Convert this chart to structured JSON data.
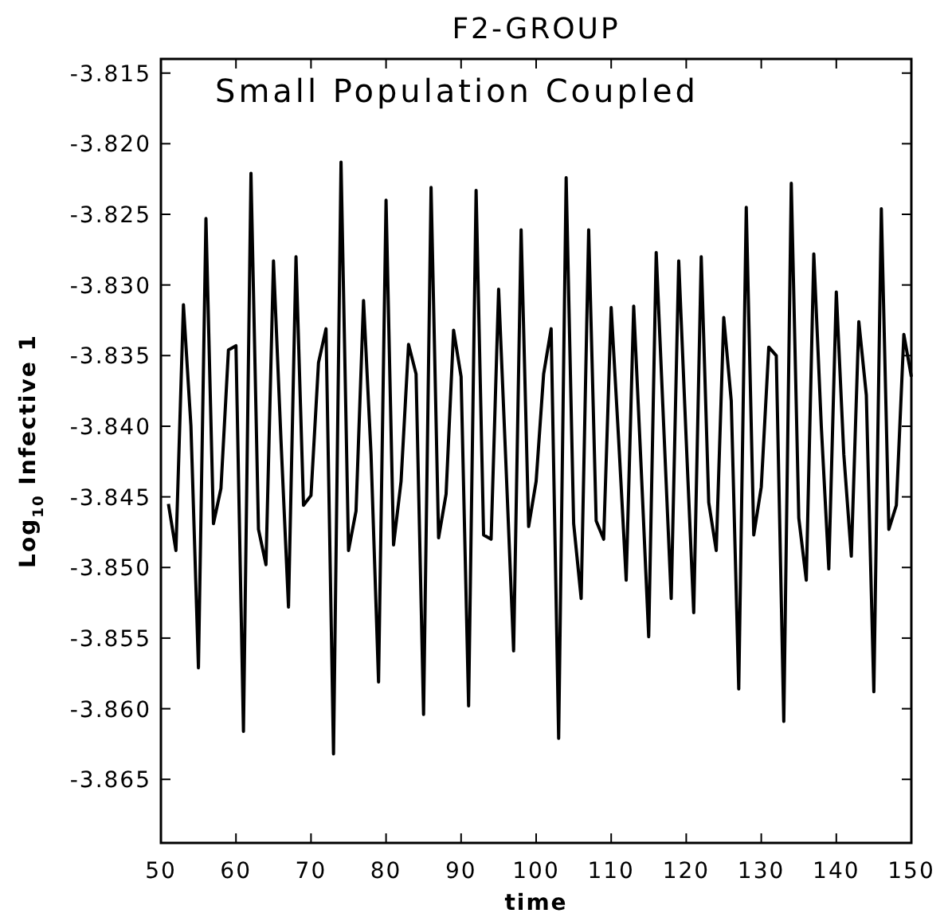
{
  "chart_data": {
    "type": "line",
    "title": "F2-GROUP",
    "xlabel": "time",
    "ylabel": "Log$_{10}$ Infective 1",
    "annotations": [
      "Small Population Coupled"
    ],
    "xlim": [
      50,
      150
    ],
    "xticks": [
      50,
      60,
      70,
      80,
      90,
      100,
      110,
      120,
      130,
      140,
      150
    ],
    "ylim": [
      -3.8695,
      -3.814
    ],
    "yticks": [
      -3.815,
      {
        "value": -3.82,
        "label": "-3.820"
      },
      -3.825,
      {
        "value": -3.83,
        "label": "-3.830"
      },
      -3.835,
      {
        "value": -3.84,
        "label": "-3.840"
      },
      -3.845,
      {
        "value": -3.85,
        "label": "-3.850"
      },
      -3.855,
      {
        "value": -3.86,
        "label": "-3.860"
      },
      -3.865
    ],
    "grid": false,
    "marker": "none",
    "line_style": "solid",
    "x": [
      51,
      52,
      53,
      54,
      55,
      56,
      57,
      58,
      59,
      60,
      61,
      62,
      63,
      64,
      65,
      66,
      67,
      68,
      69,
      70,
      71,
      72,
      73,
      74,
      75,
      76,
      77,
      78,
      79,
      80,
      81,
      82,
      83,
      84,
      85,
      86,
      87,
      88,
      89,
      90,
      91,
      92,
      93,
      94,
      95,
      96,
      97,
      98,
      99,
      100,
      101,
      102,
      103,
      104,
      105,
      106,
      107,
      108,
      109,
      110,
      111,
      112,
      113,
      114,
      115,
      116,
      117,
      118,
      119,
      120,
      121,
      122,
      123,
      124,
      125,
      126,
      127,
      128,
      129,
      130,
      131,
      132,
      133,
      134,
      135,
      136,
      137,
      138,
      139,
      140,
      141,
      142,
      143,
      144,
      145,
      146,
      147,
      148,
      149,
      150
    ],
    "series": [
      {
        "color": "#000000",
        "values": [
          -3.8455,
          -3.8488,
          -3.8314,
          -3.84,
          -3.8571,
          -3.8253,
          -3.8469,
          -3.8444,
          -3.8346,
          -3.8343,
          -3.8616,
          -3.8221,
          -3.8473,
          -3.8498,
          -3.8283,
          -3.841,
          -3.8528,
          -3.828,
          -3.8456,
          -3.8449,
          -3.8355,
          -3.8331,
          -3.8632,
          -3.8213,
          -3.8488,
          -3.846,
          -3.8311,
          -3.842,
          -3.8581,
          -3.824,
          -3.8484,
          -3.8439,
          -3.8342,
          -3.8363,
          -3.8604,
          -3.8231,
          -3.8479,
          -3.8448,
          -3.8332,
          -3.8365,
          -3.8598,
          -3.8233,
          -3.8477,
          -3.848,
          -3.8303,
          -3.843,
          -3.8559,
          -3.8261,
          -3.8471,
          -3.8439,
          -3.8363,
          -3.8331,
          -3.8621,
          -3.8224,
          -3.8469,
          -3.8522,
          -3.8261,
          -3.8467,
          -3.848,
          -3.8316,
          -3.841,
          -3.8509,
          -3.8315,
          -3.843,
          -3.8549,
          -3.8277,
          -3.84,
          -3.8522,
          -3.8283,
          -3.841,
          -3.8532,
          -3.828,
          -3.8454,
          -3.8488,
          -3.8323,
          -3.8382,
          -3.8586,
          -3.8245,
          -3.8477,
          -3.8443,
          -3.8344,
          -3.835,
          -3.8609,
          -3.8228,
          -3.8465,
          -3.8509,
          -3.8278,
          -3.84,
          -3.8501,
          -3.8305,
          -3.842,
          -3.8492,
          -3.8326,
          -3.8378,
          -3.8588,
          -3.8246,
          -3.8473,
          -3.8456,
          -3.8335,
          -3.8365
        ]
      }
    ]
  }
}
